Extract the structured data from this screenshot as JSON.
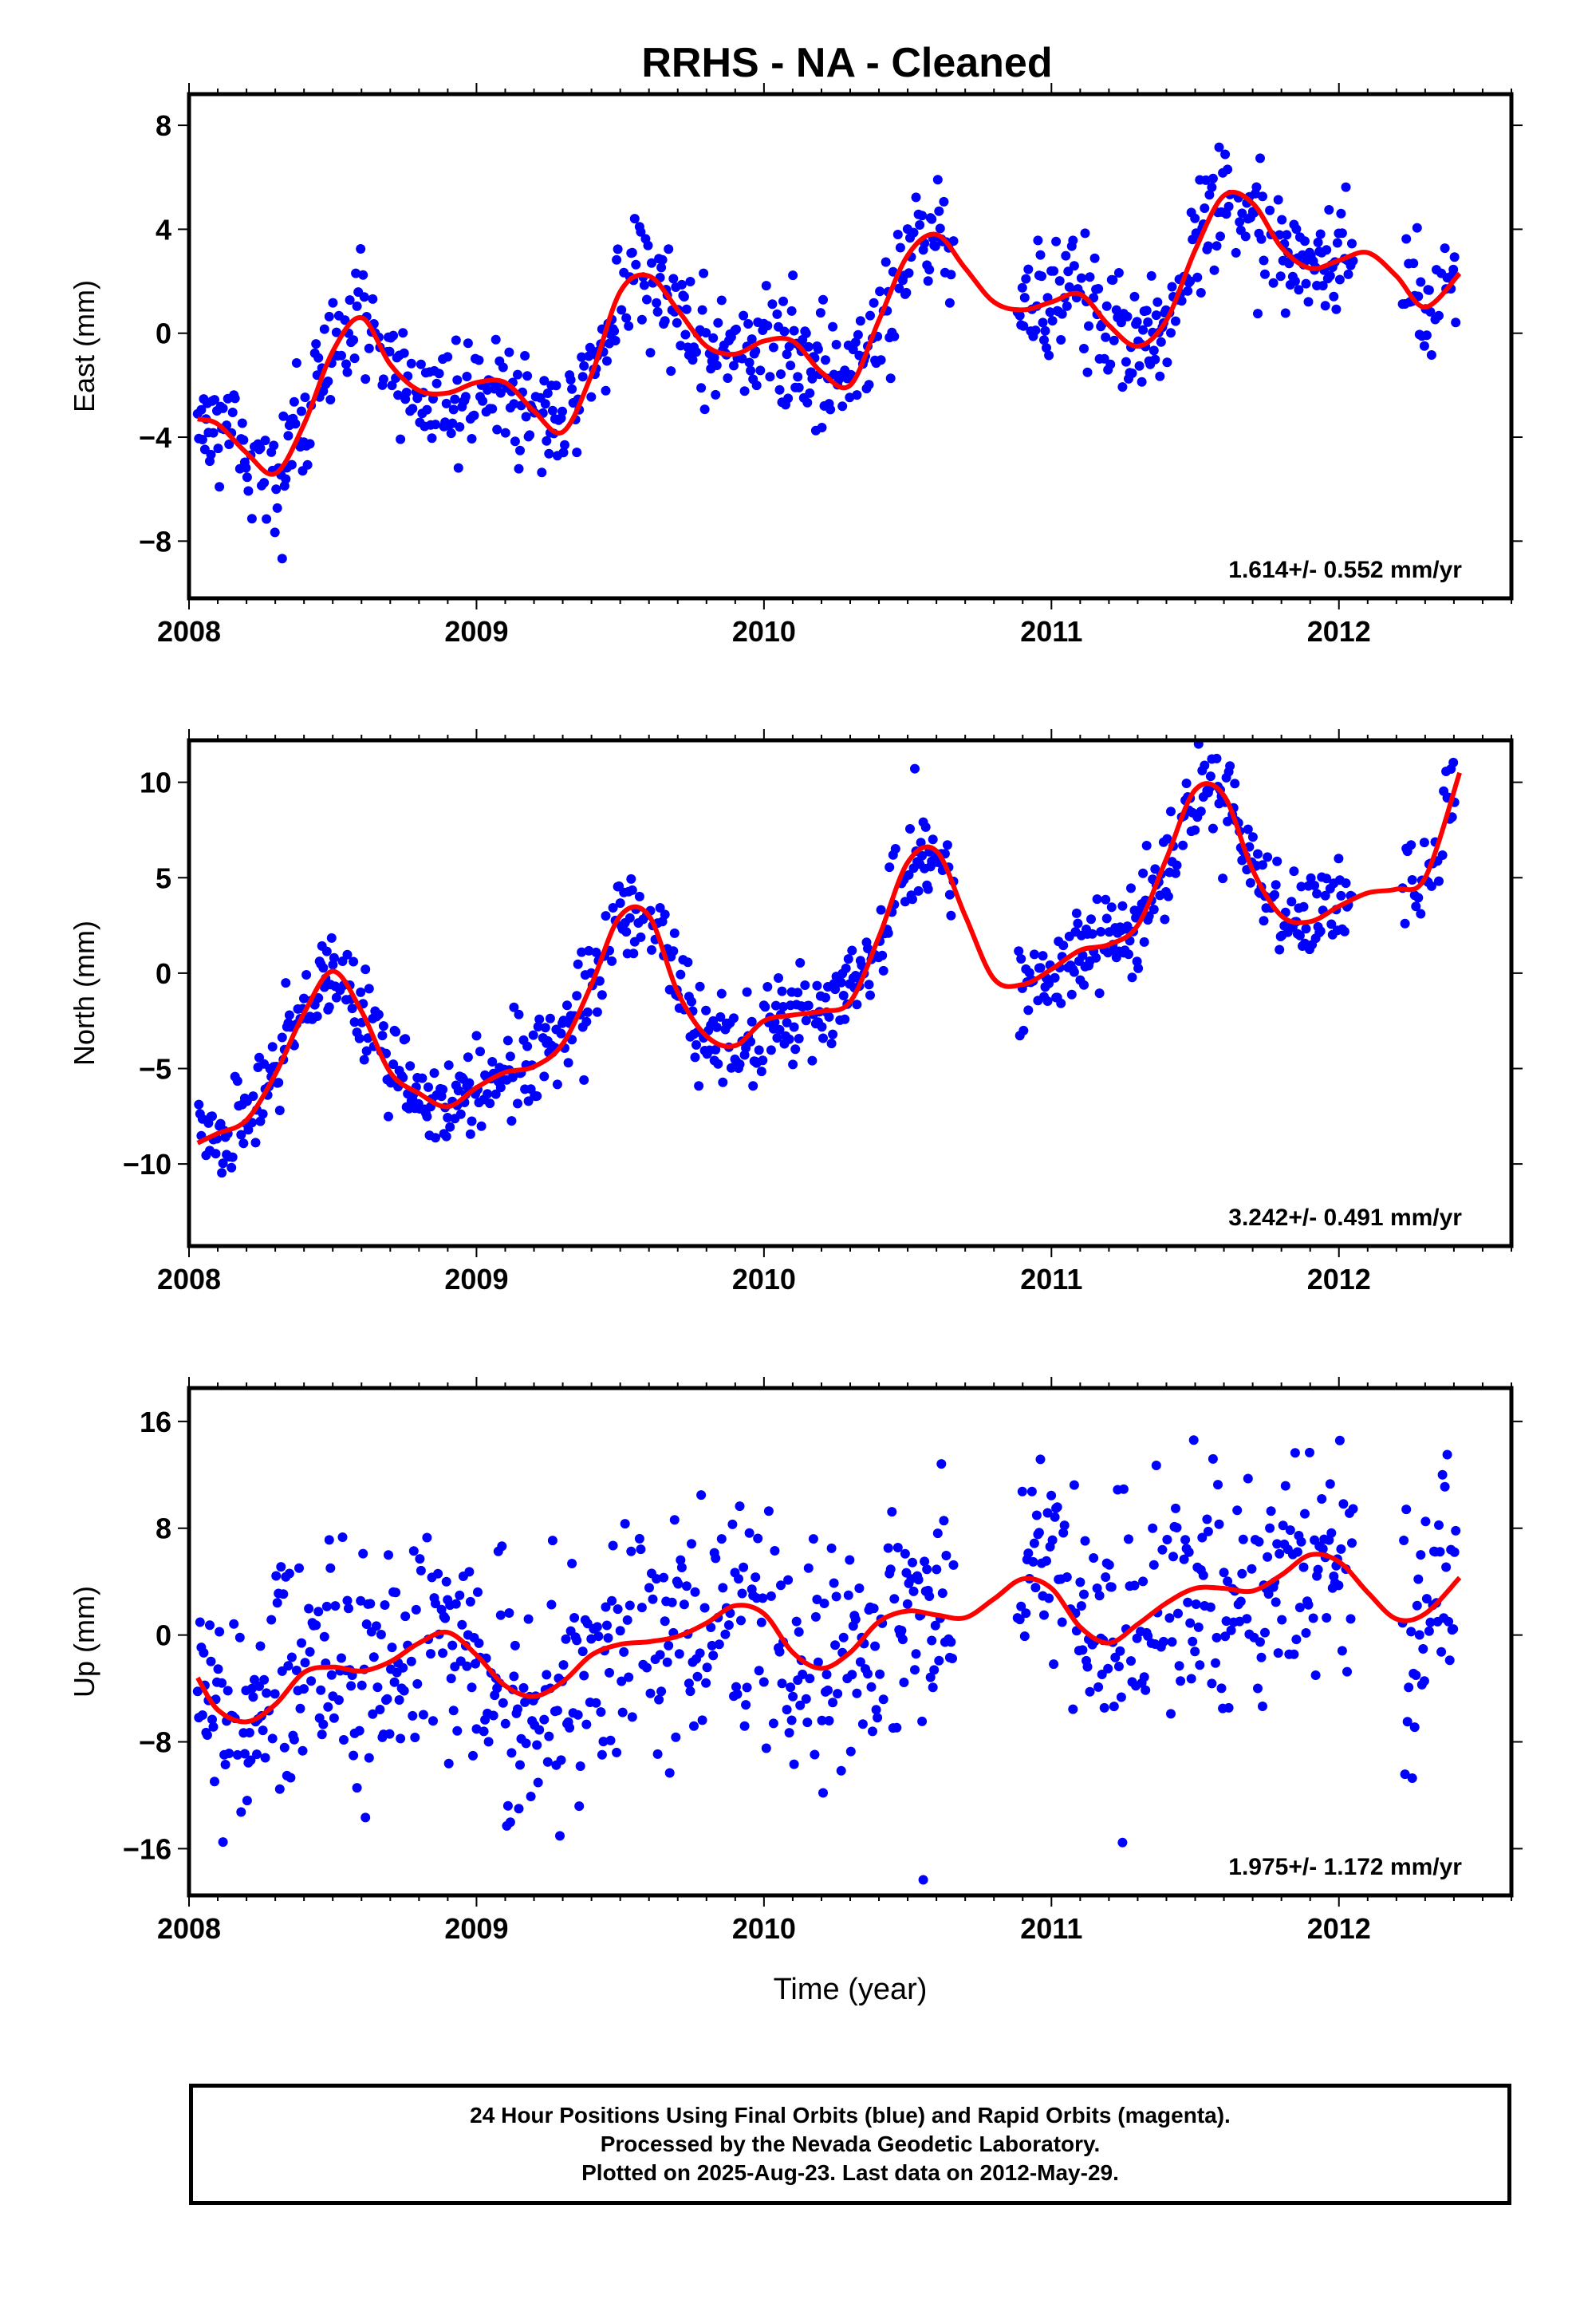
{
  "title": "RRHS  - NA - Cleaned",
  "colors": {
    "data": "#0000ff",
    "model": "#ff0000",
    "frame": "#000000"
  },
  "chart_data": [
    {
      "type": "scatter",
      "name": "east",
      "ylabel": "East (mm)",
      "xlim": [
        2008.0,
        2012.6
      ],
      "ylim": [
        -10.2,
        9.2
      ],
      "xticks": [
        2008,
        2009,
        2010,
        2011,
        2012
      ],
      "yticks": [
        -8,
        -4,
        0,
        4,
        8
      ],
      "yticklabels": [
        "−8",
        "−4",
        "0",
        "4",
        "8"
      ],
      "rate": "1.614+/- 0.552 mm/yr",
      "model_knots": {
        "x": [
          2008.03,
          2008.1,
          2008.2,
          2008.3,
          2008.4,
          2008.5,
          2008.6,
          2008.7,
          2008.8,
          2008.9,
          2009.0,
          2009.1,
          2009.2,
          2009.3,
          2009.4,
          2009.5,
          2009.6,
          2009.7,
          2009.8,
          2009.9,
          2010.0,
          2010.1,
          2010.2,
          2010.3,
          2010.4,
          2010.5,
          2010.6,
          2010.7,
          2010.8,
          2010.9,
          2011.0,
          2011.1,
          2011.2,
          2011.3,
          2011.4,
          2011.5,
          2011.6,
          2011.7,
          2011.8,
          2011.9,
          2012.0,
          2012.1,
          2012.2,
          2012.3,
          2012.42
        ],
        "y": [
          -3.3,
          -3.5,
          -4.6,
          -5.4,
          -3.5,
          -0.7,
          0.6,
          -1.2,
          -2.2,
          -2.3,
          -1.9,
          -1.9,
          -3.0,
          -3.8,
          -1.6,
          1.6,
          2.2,
          0.9,
          -0.5,
          -0.8,
          -0.3,
          -0.3,
          -1.5,
          -2.0,
          0.5,
          3.0,
          3.8,
          2.5,
          1.2,
          0.9,
          1.2,
          1.5,
          0.3,
          -0.5,
          0.5,
          3.2,
          5.3,
          5.0,
          3.3,
          2.5,
          2.8,
          3.1,
          2.2,
          1.0,
          2.3
        ]
      },
      "points_meta": {
        "trend": 1.614,
        "mid_value": -0.2,
        "noise_mm": 1.1
      }
    },
    {
      "type": "scatter",
      "name": "north",
      "ylabel": "North (mm)",
      "xlim": [
        2008.0,
        2012.6
      ],
      "ylim": [
        -14.3,
        12.2
      ],
      "xticks": [
        2008,
        2009,
        2010,
        2011,
        2012
      ],
      "yticks": [
        -10,
        -5,
        0,
        5,
        10
      ],
      "yticklabels": [
        "−10",
        "−5",
        "0",
        "5",
        "10"
      ],
      "rate": "3.242+/- 0.491 mm/yr",
      "model_knots": {
        "x": [
          2008.03,
          2008.1,
          2008.2,
          2008.3,
          2008.4,
          2008.5,
          2008.6,
          2008.7,
          2008.8,
          2008.9,
          2009.0,
          2009.1,
          2009.2,
          2009.3,
          2009.4,
          2009.5,
          2009.6,
          2009.7,
          2009.8,
          2009.9,
          2010.0,
          2010.1,
          2010.2,
          2010.3,
          2010.4,
          2010.5,
          2010.6,
          2010.7,
          2010.8,
          2010.9,
          2011.0,
          2011.1,
          2011.2,
          2011.3,
          2011.4,
          2011.5,
          2011.6,
          2011.7,
          2011.8,
          2011.9,
          2012.0,
          2012.1,
          2012.2,
          2012.3,
          2012.42
        ],
        "y": [
          -8.9,
          -8.4,
          -7.7,
          -5.3,
          -2.1,
          0.1,
          -2.0,
          -5.2,
          -6.3,
          -7.0,
          -6.0,
          -5.2,
          -4.9,
          -3.7,
          -0.6,
          3.0,
          3.0,
          -1.0,
          -3.3,
          -3.8,
          -2.5,
          -2.2,
          -2.0,
          -1.5,
          1.9,
          5.8,
          6.4,
          3.0,
          -0.3,
          -0.6,
          0.2,
          1.2,
          1.5,
          2.5,
          6.0,
          9.6,
          9.3,
          5.4,
          3.0,
          2.7,
          3.5,
          4.2,
          4.4,
          5.0,
          10.5
        ]
      },
      "points_meta": {
        "trend": 3.242,
        "mid_value": -0.5,
        "noise_mm": 1.2
      }
    },
    {
      "type": "scatter",
      "name": "up",
      "ylabel": "Up (mm)",
      "xlim": [
        2008.0,
        2012.6
      ],
      "ylim": [
        -19.5,
        18.5
      ],
      "xticks": [
        2008,
        2009,
        2010,
        2011,
        2012
      ],
      "yticks": [
        -16,
        -8,
        0,
        8,
        16
      ],
      "yticklabels": [
        "−16",
        "−8",
        "0",
        "8",
        "16"
      ],
      "xlabel": "Time (year)",
      "rate": "1.975+/- 1.172 mm/yr",
      "model_knots": {
        "x": [
          2008.03,
          2008.1,
          2008.2,
          2008.3,
          2008.4,
          2008.5,
          2008.6,
          2008.7,
          2008.8,
          2008.9,
          2009.0,
          2009.1,
          2009.2,
          2009.3,
          2009.4,
          2009.5,
          2009.6,
          2009.7,
          2009.8,
          2009.9,
          2010.0,
          2010.1,
          2010.2,
          2010.3,
          2010.4,
          2010.5,
          2010.6,
          2010.7,
          2010.8,
          2010.9,
          2011.0,
          2011.1,
          2011.2,
          2011.3,
          2011.4,
          2011.5,
          2011.6,
          2011.7,
          2011.8,
          2011.9,
          2012.0,
          2012.1,
          2012.2,
          2012.3,
          2012.42
        ],
        "y": [
          -3.2,
          -5.6,
          -6.5,
          -5.2,
          -2.8,
          -2.4,
          -2.7,
          -2.0,
          -0.6,
          0.2,
          -1.5,
          -3.8,
          -4.6,
          -3.5,
          -1.5,
          -0.7,
          -0.5,
          -0.1,
          0.9,
          2.2,
          1.6,
          -1.3,
          -2.5,
          -1.3,
          1.0,
          1.8,
          1.5,
          1.3,
          2.7,
          4.2,
          3.5,
          0.6,
          -0.6,
          0.8,
          2.4,
          3.5,
          3.5,
          3.3,
          4.5,
          6.0,
          5.5,
          3.2,
          1.2,
          1.6,
          4.3
        ]
      },
      "points_meta": {
        "trend": 1.975,
        "mid_value": 0.0,
        "noise_mm": 4.5
      }
    }
  ],
  "caption": {
    "line1": "24 Hour Positions Using Final Orbits (blue) and Rapid Orbits (magenta).",
    "line2": "Processed by the Nevada Geodetic Laboratory.",
    "line3": "Plotted on 2025-Aug-23. Last data on 2012-May-29."
  }
}
